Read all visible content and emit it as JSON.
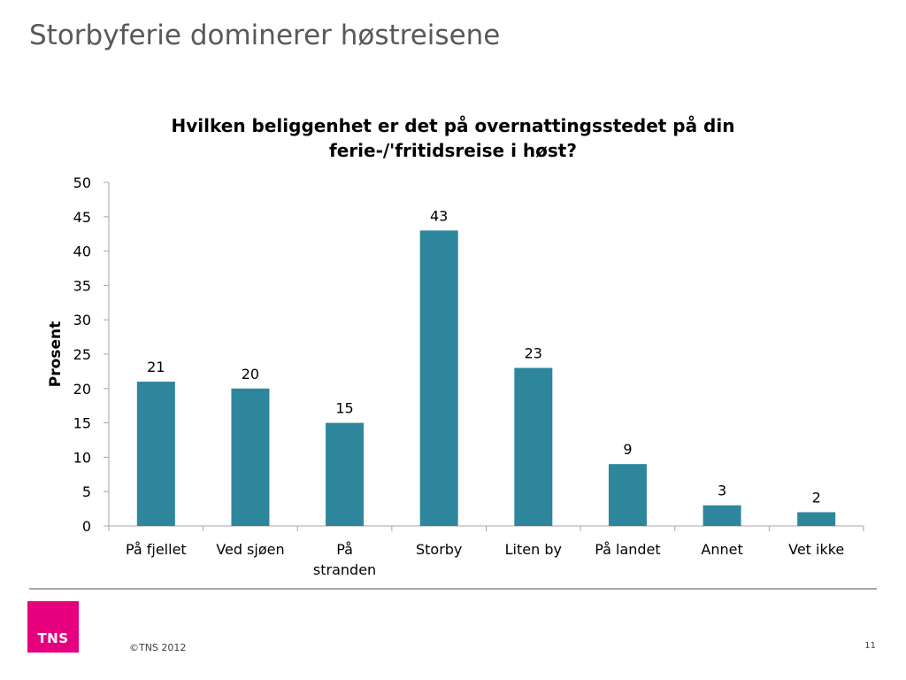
{
  "slide": {
    "title": "Storbyferie dominerer høstreisene",
    "copyright": "©TNS 2012",
    "page_number": "11",
    "logo_text": "TNS"
  },
  "colors": {
    "bar": "#2e869c",
    "logo": "#e6007e",
    "axis": "#a6a6a6"
  },
  "chart_data": {
    "type": "bar",
    "title": "Hvilken beliggenhet er det på overnattingsstedet på din ferie-/'fritidsreise i høst?",
    "ylabel": "Prosent",
    "xlabel": "",
    "ylim": [
      0,
      50
    ],
    "yticks": [
      0,
      5,
      10,
      15,
      20,
      25,
      30,
      35,
      40,
      45,
      50
    ],
    "categories": [
      "På fjellet",
      "Ved sjøen",
      "På stranden",
      "Storby",
      "Liten by",
      "På landet",
      "Annet",
      "Vet ikke"
    ],
    "category_lines": [
      [
        "På fjellet"
      ],
      [
        "Ved sjøen"
      ],
      [
        "På",
        "stranden"
      ],
      [
        "Storby"
      ],
      [
        "Liten by"
      ],
      [
        "På landet"
      ],
      [
        "Annet"
      ],
      [
        "Vet ikke"
      ]
    ],
    "values": [
      21,
      20,
      15,
      43,
      23,
      9,
      3,
      2
    ],
    "data_labels": true,
    "grid": false,
    "legend": "none"
  }
}
